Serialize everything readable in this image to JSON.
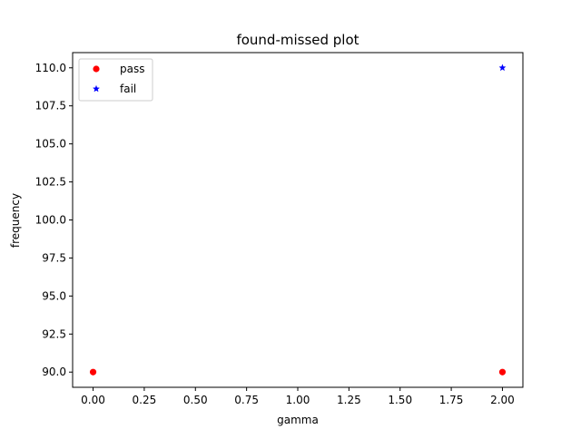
{
  "chart_data": {
    "type": "scatter",
    "title": "found-missed plot",
    "xlabel": "gamma",
    "ylabel": "frequency",
    "xlim": [
      -0.1,
      2.1
    ],
    "ylim": [
      89.0,
      111.0
    ],
    "xticks": [
      0.0,
      0.25,
      0.5,
      0.75,
      1.0,
      1.25,
      1.5,
      1.75,
      2.0
    ],
    "xtick_labels": [
      "0.00",
      "0.25",
      "0.50",
      "0.75",
      "1.00",
      "1.25",
      "1.50",
      "1.75",
      "2.00"
    ],
    "yticks": [
      90.0,
      92.5,
      95.0,
      97.5,
      100.0,
      102.5,
      105.0,
      107.5,
      110.0
    ],
    "ytick_labels": [
      "90.0",
      "92.5",
      "95.0",
      "97.5",
      "100.0",
      "102.5",
      "105.0",
      "107.5",
      "110.0"
    ],
    "grid": false,
    "legend_position": "top-left",
    "series": [
      {
        "name": "pass",
        "marker": "circle",
        "color": "#ff0000",
        "points": [
          {
            "x": 0.0,
            "y": 90.0
          },
          {
            "x": 2.0,
            "y": 90.0
          }
        ]
      },
      {
        "name": "fail",
        "marker": "star",
        "color": "#0000ff",
        "points": [
          {
            "x": 2.0,
            "y": 110.0
          }
        ]
      }
    ]
  }
}
